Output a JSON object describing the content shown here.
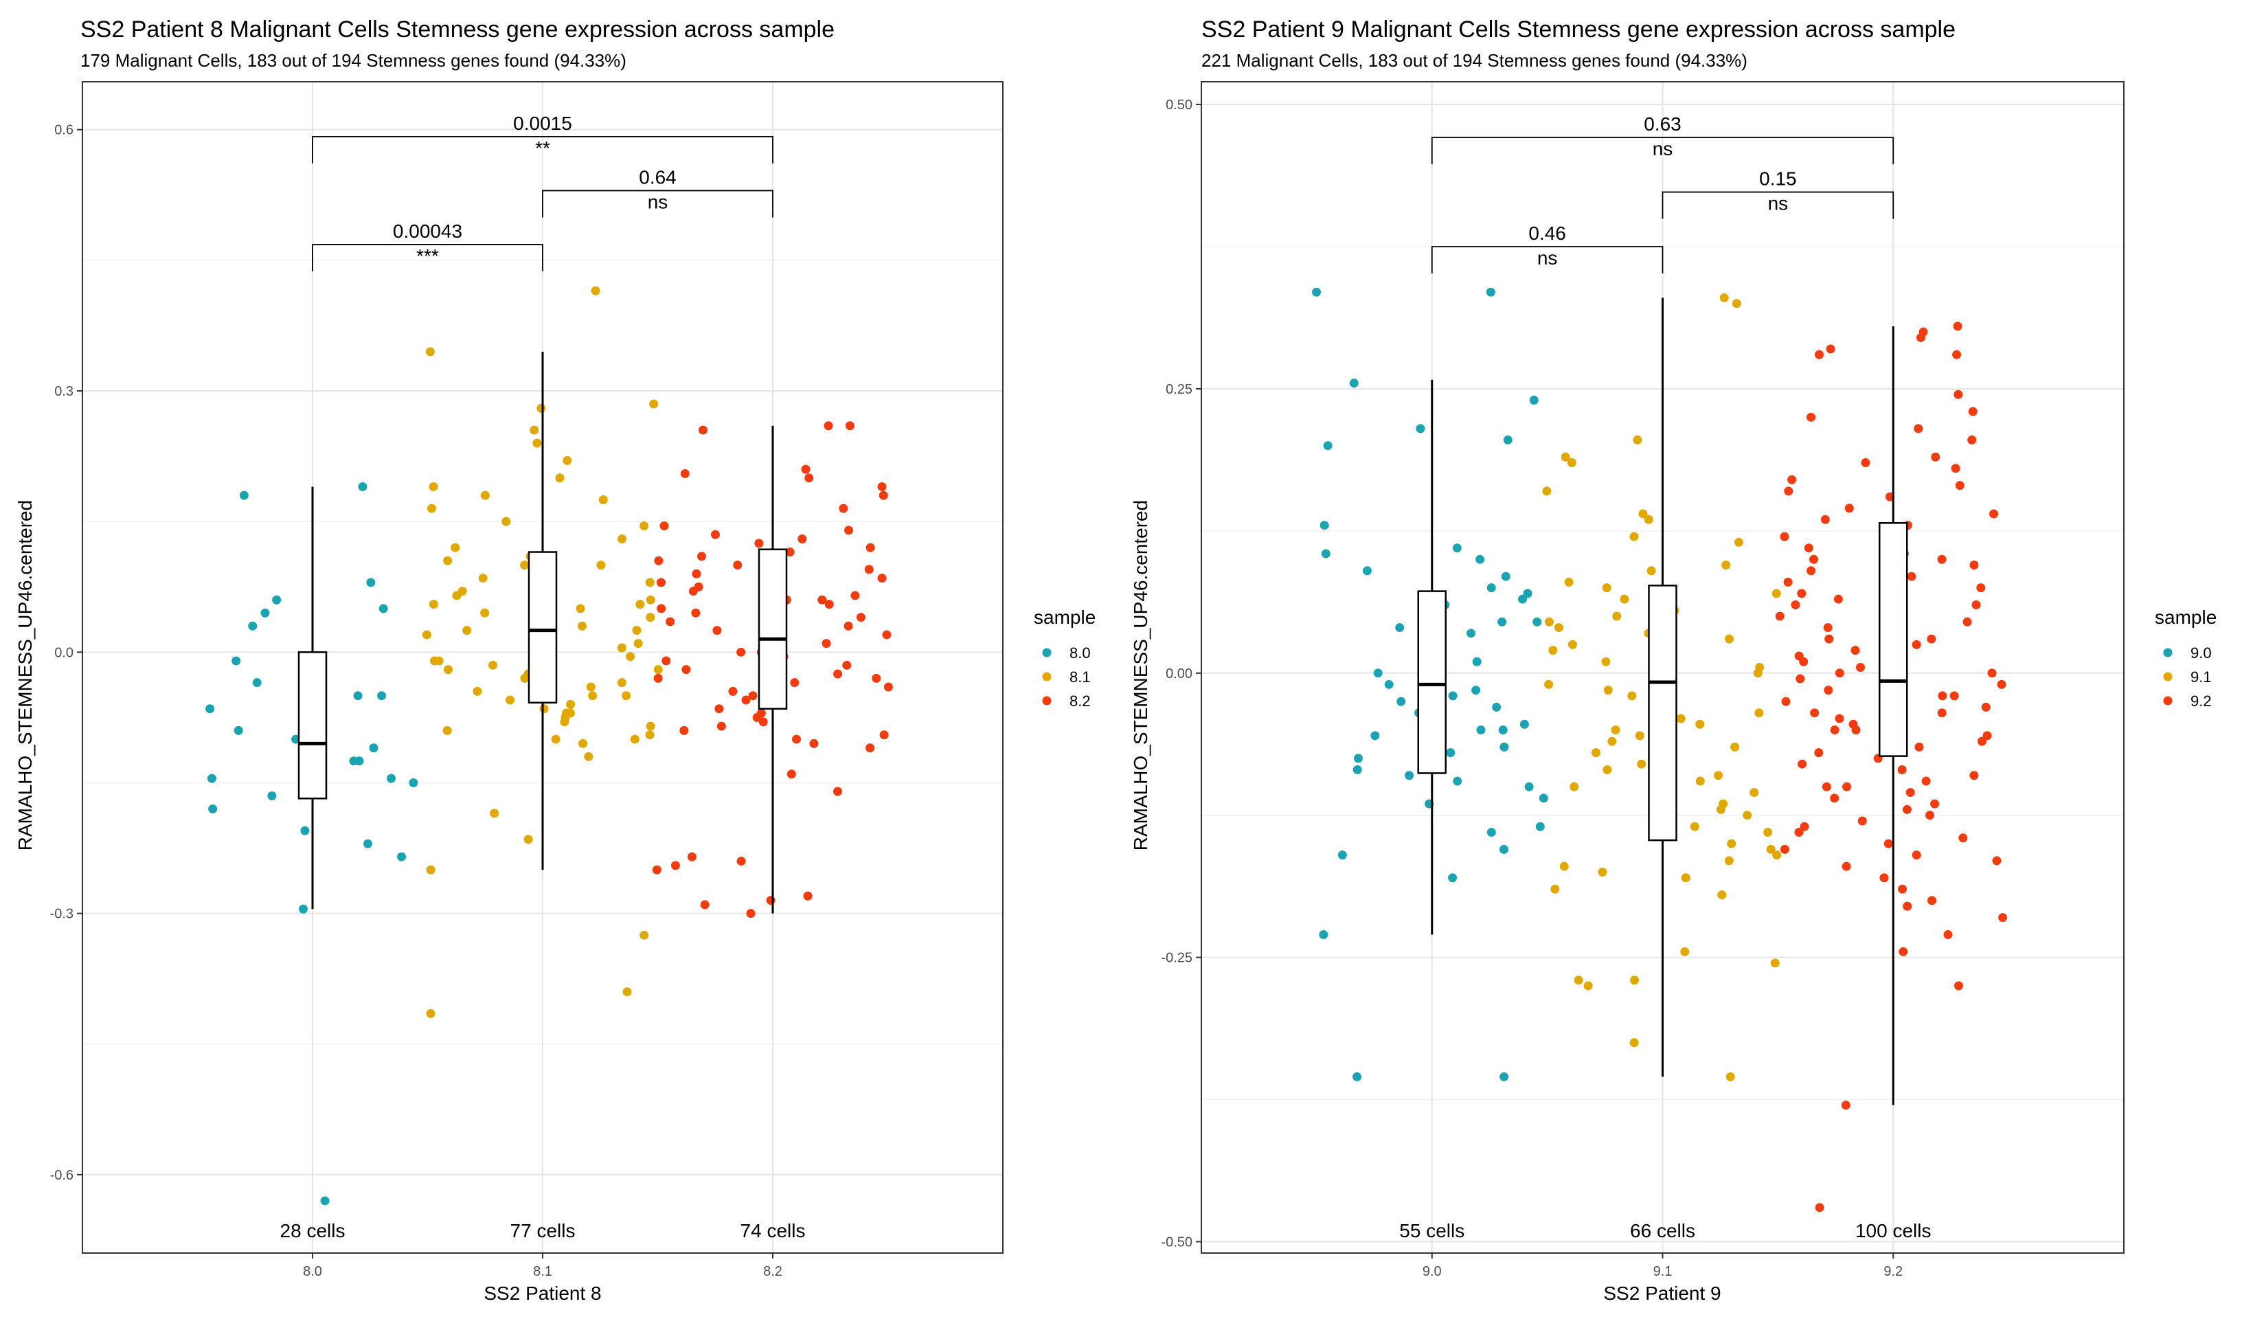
{
  "chart_data": [
    {
      "type": "box",
      "title": "SS2 Patient 8 Malignant Cells Stemness gene expression across sample",
      "subtitle": "179 Malignant Cells, 183 out of 194 Stemness genes found (94.33%)",
      "xlabel": "SS2 Patient 8",
      "ylabel": "RAMALHO_STEMNESS_UP46.centered",
      "categories": [
        "8.0",
        "8.1",
        "8.2"
      ],
      "ylim": [
        -0.69,
        0.655
      ],
      "yticks": [
        -0.6,
        -0.3,
        0.0,
        0.3,
        0.6
      ],
      "ytick_labels": [
        "-0.6",
        "-0.3",
        "0.0",
        "0.3",
        "0.6"
      ],
      "grid": true,
      "legend": {
        "title": "sample",
        "position": "right",
        "entries": [
          "8.0",
          "8.1",
          "8.2"
        ]
      },
      "colors": {
        "8.0": "#1aa3b0",
        "8.1": "#e0a800",
        "8.2": "#f23b0e"
      },
      "cell_counts": [
        "28 cells",
        "77 cells",
        "74 cells"
      ],
      "boxes": [
        {
          "category": "8.0",
          "whisker_low": -0.295,
          "q1": -0.168,
          "median": -0.105,
          "q3": 0.0,
          "whisker_high": 0.19
        },
        {
          "category": "8.1",
          "whisker_low": -0.25,
          "q1": -0.058,
          "median": 0.025,
          "q3": 0.115,
          "whisker_high": 0.345
        },
        {
          "category": "8.2",
          "whisker_low": -0.3,
          "q1": -0.065,
          "median": 0.015,
          "q3": 0.118,
          "whisker_high": 0.26
        }
      ],
      "comparisons": [
        {
          "group1": "8.0",
          "group2": "8.1",
          "p_value": "0.00043",
          "significance": "***",
          "y": 0.468
        },
        {
          "group1": "8.1",
          "group2": "8.2",
          "p_value": "0.64",
          "significance": "ns",
          "y": 0.53
        },
        {
          "group1": "8.0",
          "group2": "8.2",
          "p_value": "0.0015",
          "significance": "**",
          "y": 0.592
        }
      ],
      "points": {
        "8.0": [
          0.19,
          0.18,
          0.08,
          0.06,
          0.05,
          0.045,
          0.03,
          -0.01,
          -0.035,
          -0.04,
          -0.05,
          -0.05,
          -0.065,
          -0.1,
          -0.11,
          -0.125,
          -0.125,
          -0.145,
          -0.145,
          -0.15,
          -0.165,
          -0.18,
          -0.205,
          -0.22,
          -0.235,
          -0.295,
          -0.63,
          -0.09
        ],
        "8.1": [
          0.415,
          0.345,
          0.285,
          0.28,
          0.255,
          0.24,
          0.22,
          0.2,
          0.19,
          0.18,
          0.175,
          0.165,
          0.15,
          0.145,
          0.13,
          0.12,
          0.11,
          0.11,
          0.105,
          0.1,
          0.1,
          0.09,
          0.085,
          0.08,
          0.075,
          0.07,
          0.065,
          0.06,
          0.055,
          0.055,
          0.05,
          0.045,
          0.04,
          0.035,
          0.03,
          0.025,
          0.025,
          0.02,
          0.015,
          0.01,
          0.005,
          0.0,
          0.0,
          -0.005,
          -0.01,
          -0.01,
          -0.015,
          -0.02,
          -0.02,
          -0.025,
          -0.03,
          -0.035,
          -0.04,
          -0.045,
          -0.05,
          -0.05,
          -0.055,
          -0.06,
          -0.065,
          -0.07,
          -0.07,
          -0.075,
          -0.08,
          -0.085,
          -0.09,
          -0.095,
          -0.1,
          -0.1,
          -0.105,
          -0.12,
          -0.185,
          -0.215,
          -0.25,
          -0.325,
          -0.39,
          -0.415,
          -0.02
        ],
        "8.2": [
          0.26,
          0.26,
          0.255,
          0.21,
          0.205,
          0.2,
          0.19,
          0.18,
          0.165,
          0.145,
          0.14,
          0.135,
          0.13,
          0.125,
          0.12,
          0.115,
          0.11,
          0.105,
          0.1,
          0.095,
          0.09,
          0.085,
          0.08,
          0.075,
          0.07,
          0.065,
          0.06,
          0.055,
          0.05,
          0.045,
          0.04,
          0.035,
          0.03,
          0.025,
          0.02,
          0.015,
          0.01,
          0.005,
          0.0,
          0.0,
          -0.005,
          -0.01,
          -0.015,
          -0.02,
          -0.025,
          -0.03,
          -0.035,
          -0.04,
          -0.045,
          -0.05,
          -0.055,
          -0.06,
          -0.065,
          -0.07,
          -0.075,
          -0.08,
          -0.085,
          -0.09,
          -0.095,
          -0.1,
          -0.105,
          -0.11,
          -0.14,
          -0.16,
          -0.235,
          -0.24,
          -0.245,
          -0.25,
          -0.28,
          -0.285,
          -0.29,
          -0.3,
          -0.03,
          0.06
        ]
      }
    },
    {
      "type": "box",
      "title": "SS2 Patient 9 Malignant Cells Stemness gene expression across sample",
      "subtitle": "221 Malignant Cells, 183 out of 194 Stemness genes found (94.33%)",
      "xlabel": "SS2 Patient 9",
      "ylabel": "RAMALHO_STEMNESS_UP46.centered",
      "categories": [
        "9.0",
        "9.1",
        "9.2"
      ],
      "ylim": [
        -0.51,
        0.52
      ],
      "yticks": [
        -0.5,
        -0.25,
        0.0,
        0.25,
        0.5
      ],
      "ytick_labels": [
        "-0.50",
        "-0.25",
        "0.00",
        "0.25",
        "0.50"
      ],
      "grid": true,
      "legend": {
        "title": "sample",
        "position": "right",
        "entries": [
          "9.0",
          "9.1",
          "9.2"
        ]
      },
      "colors": {
        "9.0": "#1aa3b0",
        "9.1": "#e0a800",
        "9.2": "#f23b0e"
      },
      "cell_counts": [
        "55 cells",
        "66 cells",
        "100 cells"
      ],
      "boxes": [
        {
          "category": "9.0",
          "whisker_low": -0.23,
          "q1": -0.088,
          "median": -0.01,
          "q3": 0.072,
          "whisker_high": 0.258
        },
        {
          "category": "9.1",
          "whisker_low": -0.355,
          "q1": -0.147,
          "median": -0.008,
          "q3": 0.077,
          "whisker_high": 0.33
        },
        {
          "category": "9.2",
          "whisker_low": -0.38,
          "q1": -0.073,
          "median": -0.007,
          "q3": 0.132,
          "whisker_high": 0.305
        }
      ],
      "comparisons": [
        {
          "group1": "9.0",
          "group2": "9.1",
          "p_value": "0.46",
          "significance": "ns",
          "y": 0.375
        },
        {
          "group1": "9.1",
          "group2": "9.2",
          "p_value": "0.15",
          "significance": "ns",
          "y": 0.423
        },
        {
          "group1": "9.0",
          "group2": "9.2",
          "p_value": "0.63",
          "significance": "ns",
          "y": 0.471
        }
      ],
      "points": {
        "9.0": [
          0.335,
          0.335,
          0.255,
          0.24,
          0.215,
          0.205,
          0.2,
          0.13,
          0.11,
          0.105,
          0.1,
          0.09,
          0.085,
          0.075,
          0.07,
          0.065,
          0.06,
          0.055,
          0.045,
          0.045,
          0.04,
          0.035,
          0.015,
          0.01,
          0.0,
          -0.01,
          -0.015,
          -0.02,
          -0.025,
          -0.03,
          -0.035,
          -0.04,
          -0.04,
          -0.045,
          -0.045,
          -0.05,
          -0.05,
          -0.055,
          -0.065,
          -0.07,
          -0.075,
          -0.085,
          -0.09,
          -0.095,
          -0.1,
          -0.11,
          -0.115,
          -0.135,
          -0.14,
          -0.155,
          -0.16,
          -0.18,
          -0.23,
          -0.355,
          -0.355
        ],
        "9.1": [
          0.33,
          0.325,
          0.205,
          0.19,
          0.185,
          0.16,
          0.14,
          0.135,
          0.12,
          0.115,
          0.095,
          0.09,
          0.08,
          0.075,
          0.07,
          0.065,
          0.05,
          0.045,
          0.04,
          0.035,
          0.03,
          0.025,
          0.01,
          0.005,
          0.0,
          -0.01,
          -0.015,
          -0.02,
          -0.03,
          -0.035,
          -0.045,
          -0.05,
          -0.055,
          -0.06,
          -0.07,
          -0.08,
          -0.085,
          -0.09,
          -0.095,
          -0.1,
          -0.105,
          -0.115,
          -0.12,
          -0.125,
          -0.135,
          -0.14,
          -0.15,
          -0.155,
          -0.16,
          -0.165,
          -0.17,
          -0.175,
          -0.18,
          -0.19,
          -0.195,
          -0.245,
          -0.255,
          -0.27,
          -0.27,
          -0.275,
          -0.325,
          -0.355,
          0.055,
          0.02,
          -0.04,
          -0.065
        ],
        "9.2": [
          0.305,
          0.3,
          0.295,
          0.285,
          0.28,
          0.28,
          0.245,
          0.23,
          0.225,
          0.215,
          0.205,
          0.19,
          0.185,
          0.18,
          0.17,
          0.165,
          0.16,
          0.155,
          0.145,
          0.14,
          0.135,
          0.13,
          0.12,
          0.11,
          0.105,
          0.1,
          0.095,
          0.09,
          0.085,
          0.08,
          0.075,
          0.07,
          0.065,
          0.06,
          0.055,
          0.05,
          0.045,
          0.04,
          0.035,
          0.03,
          0.025,
          0.02,
          0.015,
          0.01,
          0.005,
          0.0,
          -0.005,
          -0.01,
          -0.015,
          -0.02,
          -0.025,
          -0.03,
          -0.035,
          -0.04,
          -0.045,
          -0.05,
          -0.055,
          -0.06,
          -0.065,
          -0.07,
          -0.075,
          -0.08,
          -0.085,
          -0.09,
          -0.095,
          -0.1,
          -0.105,
          -0.11,
          -0.115,
          -0.12,
          -0.125,
          -0.13,
          -0.135,
          -0.14,
          -0.145,
          -0.15,
          -0.155,
          -0.16,
          -0.165,
          -0.17,
          -0.18,
          -0.19,
          -0.2,
          -0.205,
          -0.215,
          -0.23,
          -0.245,
          -0.275,
          -0.38,
          -0.47,
          0.0,
          -0.05,
          0.03,
          -0.02,
          0.06,
          -0.07,
          0.1,
          -0.1,
          0.015,
          -0.035
        ]
      }
    }
  ]
}
